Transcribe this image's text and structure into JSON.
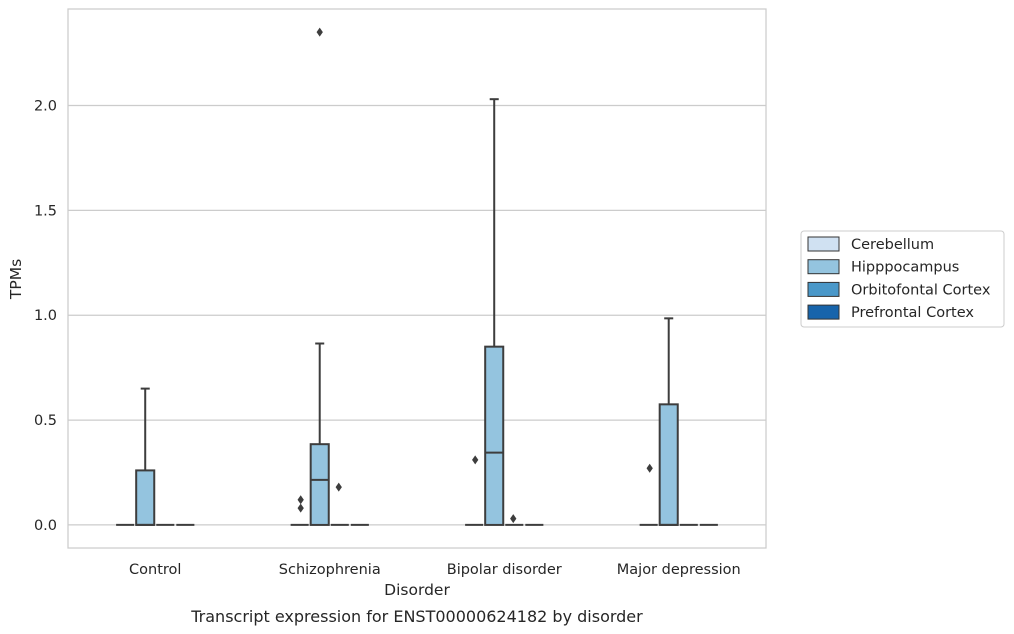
{
  "chart_data": {
    "type": "box",
    "xlabel": "Disorder",
    "ylabel": "TPMs",
    "caption": "Transcript expression for ENST00000624182 by disorder",
    "categories": [
      "Control",
      "Schizophrenia",
      "Bipolar disorder",
      "Major depression"
    ],
    "ylim": [
      -0.11,
      2.46
    ],
    "yticks": [
      0.0,
      0.5,
      1.0,
      1.5,
      2.0
    ],
    "ytick_labels": [
      "0.0",
      "0.5",
      "1.0",
      "1.5",
      "2.0"
    ],
    "grid": "horizontal",
    "legend": {
      "placement": "right",
      "entries": [
        {
          "label": "Cerebellum",
          "color": "#d0e1f2"
        },
        {
          "label": "Hipppocampus",
          "color": "#94c4df"
        },
        {
          "label": "Orbitofontal Cortex",
          "color": "#4a98c9"
        },
        {
          "label": "Prefrontal Cortex",
          "color": "#1764ab"
        }
      ]
    },
    "series": [
      {
        "name": "Cerebellum",
        "color": "#d0e1f2",
        "boxes": [
          {
            "category": "Control",
            "whisker_low": 0,
            "q1": 0,
            "median": 0,
            "q3": 0,
            "whisker_high": 0,
            "outliers": []
          },
          {
            "category": "Schizophrenia",
            "whisker_low": 0,
            "q1": 0,
            "median": 0,
            "q3": 0,
            "whisker_high": 0,
            "outliers": []
          },
          {
            "category": "Bipolar disorder",
            "whisker_low": 0,
            "q1": 0,
            "median": 0,
            "q3": 0,
            "whisker_high": 0,
            "outliers": []
          },
          {
            "category": "Major depression",
            "whisker_low": 0,
            "q1": 0,
            "median": 0,
            "q3": 0,
            "whisker_high": 0,
            "outliers": []
          }
        ]
      },
      {
        "name": "Hipppocampus",
        "color": "#94c4df",
        "boxes": [
          {
            "category": "Control",
            "whisker_low": 0,
            "q1": 0,
            "median": 0,
            "q3": 0.26,
            "whisker_high": 0.65,
            "outliers": []
          },
          {
            "category": "Schizophrenia",
            "whisker_low": 0,
            "q1": 0,
            "median": 0.215,
            "q3": 0.385,
            "whisker_high": 0.865,
            "outliers": [
              0.12,
              0.18,
              0.08,
              2.35
            ]
          },
          {
            "category": "Bipolar disorder",
            "whisker_low": 0,
            "q1": 0,
            "median": 0.345,
            "q3": 0.85,
            "whisker_high": 2.03,
            "outliers": [
              0.31,
              0.03
            ]
          },
          {
            "category": "Major depression",
            "whisker_low": 0,
            "q1": 0,
            "median": 0,
            "q3": 0.575,
            "whisker_high": 0.985,
            "outliers": [
              0.27
            ]
          }
        ]
      },
      {
        "name": "Orbitofontal Cortex",
        "color": "#4a98c9",
        "boxes": [
          {
            "category": "Control",
            "whisker_low": 0,
            "q1": 0,
            "median": 0,
            "q3": 0,
            "whisker_high": 0,
            "outliers": []
          },
          {
            "category": "Schizophrenia",
            "whisker_low": 0,
            "q1": 0,
            "median": 0,
            "q3": 0,
            "whisker_high": 0,
            "outliers": []
          },
          {
            "category": "Bipolar disorder",
            "whisker_low": 0,
            "q1": 0,
            "median": 0,
            "q3": 0,
            "whisker_high": 0,
            "outliers": []
          },
          {
            "category": "Major depression",
            "whisker_low": 0,
            "q1": 0,
            "median": 0,
            "q3": 0,
            "whisker_high": 0,
            "outliers": []
          }
        ]
      },
      {
        "name": "Prefrontal Cortex",
        "color": "#1764ab",
        "boxes": [
          {
            "category": "Control",
            "whisker_low": 0,
            "q1": 0,
            "median": 0,
            "q3": 0,
            "whisker_high": 0,
            "outliers": []
          },
          {
            "category": "Schizophrenia",
            "whisker_low": 0,
            "q1": 0,
            "median": 0,
            "q3": 0,
            "whisker_high": 0,
            "outliers": []
          },
          {
            "category": "Bipolar disorder",
            "whisker_low": 0,
            "q1": 0,
            "median": 0,
            "q3": 0,
            "whisker_high": 0,
            "outliers": []
          },
          {
            "category": "Major depression",
            "whisker_low": 0,
            "q1": 0,
            "median": 0,
            "q3": 0,
            "whisker_high": 0,
            "outliers": []
          }
        ]
      }
    ]
  }
}
